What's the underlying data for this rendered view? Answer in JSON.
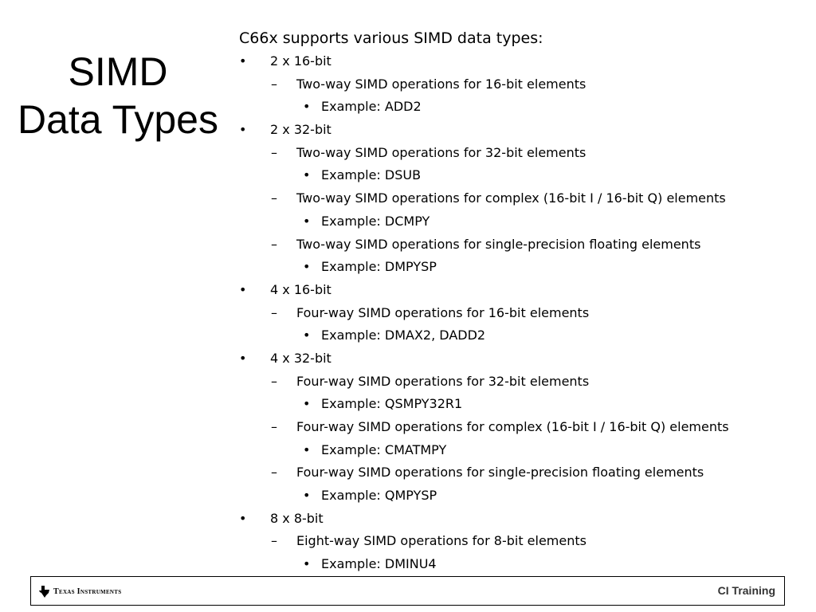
{
  "slide": {
    "title_lines": [
      "SIMD",
      "Data Types"
    ],
    "intro": "C66x supports various SIMD data types:",
    "markers": {
      "level0": "•",
      "level1": "–",
      "level2": "•"
    },
    "items": [
      {
        "level": 0,
        "text": "2 x 16-bit"
      },
      {
        "level": 1,
        "text": "Two-way SIMD operations for 16-bit elements"
      },
      {
        "level": 2,
        "text": "Example: ADD2"
      },
      {
        "level": 0,
        "text": "2 x 32-bit"
      },
      {
        "level": 1,
        "text": "Two-way SIMD operations for 32-bit elements"
      },
      {
        "level": 2,
        "text": "Example: DSUB"
      },
      {
        "level": 1,
        "text": "Two-way SIMD operations for complex (16-bit I / 16-bit Q) elements"
      },
      {
        "level": 2,
        "text": "Example: DCMPY"
      },
      {
        "level": 1,
        "text": "Two-way SIMD operations for single-precision floating elements"
      },
      {
        "level": 2,
        "text": "Example: DMPYSP"
      },
      {
        "level": 0,
        "text": "4 x 16-bit"
      },
      {
        "level": 1,
        "text": "Four-way SIMD operations for 16-bit elements"
      },
      {
        "level": 2,
        "text": "Example: DMAX2, DADD2"
      },
      {
        "level": 0,
        "text": "4 x 32-bit"
      },
      {
        "level": 1,
        "text": "Four-way SIMD operations for 32-bit elements"
      },
      {
        "level": 2,
        "text": "Example: QSMPY32R1"
      },
      {
        "level": 1,
        "text": "Four-way SIMD operations for complex (16-bit I / 16-bit Q) elements"
      },
      {
        "level": 2,
        "text": "Example: CMATMPY"
      },
      {
        "level": 1,
        "text": "Four-way SIMD operations for single-precision floating elements"
      },
      {
        "level": 2,
        "text": "Example: QMPYSP"
      },
      {
        "level": 0,
        "text": "8 x 8-bit"
      },
      {
        "level": 1,
        "text": "Eight-way SIMD operations for 8-bit elements"
      },
      {
        "level": 2,
        "text": "Example: DMINU4"
      }
    ]
  },
  "footer": {
    "logo_text": "Texas Instruments",
    "logo_icon": "texas-state-icon",
    "right_label": "CI Training"
  }
}
